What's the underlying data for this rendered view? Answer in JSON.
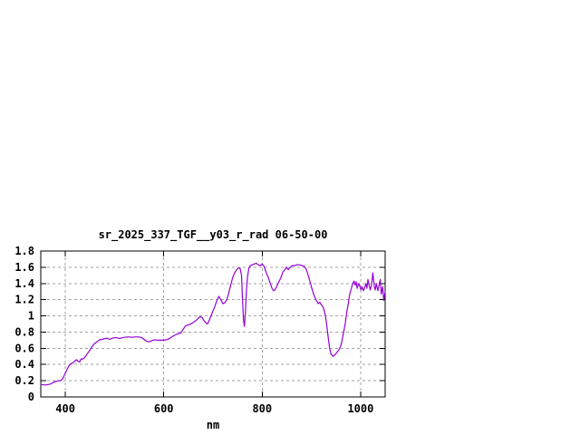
{
  "window": {
    "background": "#ffffff"
  },
  "chart_data": {
    "type": "line",
    "title": "sr_2025_337_TGF__y03_r_rad 06-50-00",
    "xlabel": "nm",
    "ylabel": "",
    "xlim": [
      350,
      1050
    ],
    "ylim": [
      0,
      1.8
    ],
    "grid": true,
    "legend": "none",
    "line_color": "#9400d3",
    "grid_color": "#a0a0a0",
    "frame_color": "#000000",
    "x_ticks": {
      "values": [
        400,
        600,
        800,
        1000
      ],
      "labels": [
        "400",
        "600",
        "800",
        "1000"
      ]
    },
    "y_ticks": {
      "values": [
        0,
        0.2,
        0.4,
        0.6,
        0.8,
        1.0,
        1.2,
        1.4,
        1.6,
        1.8
      ],
      "labels": [
        "0",
        "0.2",
        "0.4",
        "0.6",
        "0.8",
        "1",
        "1.2",
        "1.4",
        "1.6",
        "1.8"
      ]
    },
    "series": [
      {
        "x": [
          350,
          354,
          358,
          362,
          366,
          370,
          374,
          378,
          382,
          386,
          390,
          394,
          398,
          402,
          405,
          408,
          411,
          415,
          418,
          422,
          426,
          429,
          432,
          435,
          438,
          442,
          446,
          450,
          454,
          458,
          462,
          466,
          470,
          475,
          480,
          485,
          490,
          495,
          500,
          505,
          510,
          515,
          520,
          525,
          530,
          535,
          540,
          545,
          550,
          554,
          558,
          562,
          566,
          570,
          574,
          578,
          582,
          586,
          590,
          595,
          600,
          605,
          610,
          615,
          620,
          625,
          630,
          635,
          638,
          641,
          645,
          650,
          655,
          660,
          665,
          670,
          674,
          678,
          682,
          686,
          689,
          692,
          696,
          700,
          704,
          708,
          712,
          716,
          720,
          724,
          728,
          732,
          736,
          740,
          744,
          748,
          752,
          755,
          758,
          760,
          762,
          764,
          766,
          768,
          770,
          773,
          776,
          780,
          784,
          788,
          792,
          796,
          800,
          804,
          808,
          812,
          816,
          820,
          823,
          826,
          830,
          834,
          838,
          842,
          846,
          849,
          853,
          857,
          861,
          866,
          871,
          876,
          881,
          886,
          890,
          895,
          900,
          905,
          910,
          914,
          917,
          920,
          924,
          928,
          931,
          934,
          937,
          940,
          944,
          948,
          952,
          956,
          960,
          963,
          966,
          969,
          972,
          975,
          978,
          981,
          984,
          987,
          989,
          991,
          993,
          996,
          999,
          1001,
          1003,
          1006,
          1008,
          1011,
          1013,
          1015,
          1018,
          1020,
          1023,
          1025,
          1028,
          1030,
          1032,
          1035,
          1037,
          1040,
          1042,
          1045,
          1047,
          1050
        ],
        "y": [
          0.155,
          0.15,
          0.148,
          0.15,
          0.154,
          0.16,
          0.175,
          0.185,
          0.193,
          0.2,
          0.2,
          0.22,
          0.27,
          0.32,
          0.36,
          0.39,
          0.41,
          0.42,
          0.435,
          0.46,
          0.44,
          0.43,
          0.47,
          0.465,
          0.48,
          0.51,
          0.545,
          0.58,
          0.62,
          0.65,
          0.67,
          0.69,
          0.705,
          0.71,
          0.72,
          0.725,
          0.71,
          0.725,
          0.73,
          0.73,
          0.72,
          0.73,
          0.735,
          0.74,
          0.74,
          0.735,
          0.74,
          0.74,
          0.74,
          0.735,
          0.72,
          0.7,
          0.685,
          0.68,
          0.69,
          0.7,
          0.705,
          0.7,
          0.7,
          0.7,
          0.7,
          0.705,
          0.715,
          0.735,
          0.755,
          0.77,
          0.78,
          0.79,
          0.82,
          0.85,
          0.88,
          0.89,
          0.9,
          0.92,
          0.94,
          0.97,
          0.99,
          0.98,
          0.94,
          0.91,
          0.9,
          0.94,
          1.0,
          1.06,
          1.12,
          1.19,
          1.24,
          1.2,
          1.15,
          1.16,
          1.2,
          1.28,
          1.38,
          1.47,
          1.53,
          1.57,
          1.59,
          1.59,
          1.5,
          1.2,
          0.95,
          0.87,
          1.05,
          1.3,
          1.47,
          1.59,
          1.62,
          1.63,
          1.64,
          1.65,
          1.63,
          1.62,
          1.64,
          1.61,
          1.54,
          1.48,
          1.41,
          1.34,
          1.31,
          1.32,
          1.37,
          1.42,
          1.47,
          1.54,
          1.57,
          1.6,
          1.57,
          1.6,
          1.62,
          1.62,
          1.63,
          1.63,
          1.62,
          1.61,
          1.57,
          1.47,
          1.36,
          1.26,
          1.19,
          1.15,
          1.17,
          1.14,
          1.11,
          1.02,
          0.9,
          0.75,
          0.6,
          0.53,
          0.5,
          0.52,
          0.55,
          0.58,
          0.63,
          0.72,
          0.81,
          0.91,
          1.05,
          1.15,
          1.27,
          1.33,
          1.4,
          1.43,
          1.38,
          1.42,
          1.34,
          1.4,
          1.36,
          1.32,
          1.36,
          1.31,
          1.34,
          1.4,
          1.34,
          1.45,
          1.36,
          1.32,
          1.41,
          1.53,
          1.36,
          1.32,
          1.4,
          1.31,
          1.36,
          1.45,
          1.27,
          1.36,
          1.19,
          1.3
        ]
      }
    ]
  }
}
